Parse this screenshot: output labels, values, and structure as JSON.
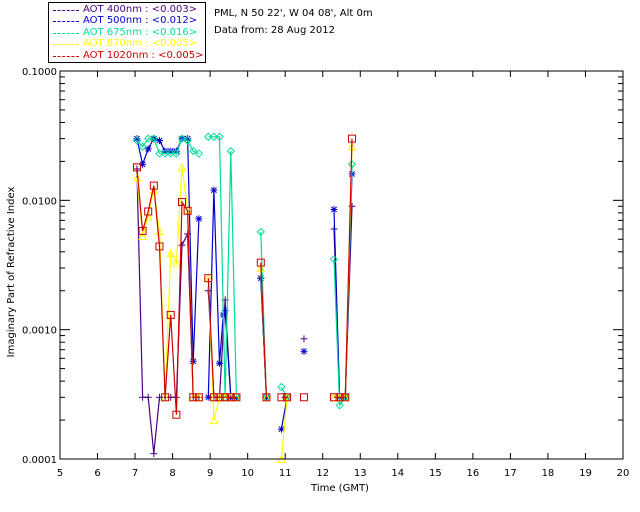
{
  "info": {
    "site_line": "PML, N 50 22', W 04 08', Alt 0m",
    "date_line": "Data from: 28 Aug 2012"
  },
  "legend": [
    {
      "label": "AOT  400nm : <0.003>",
      "color": "#4b0082"
    },
    {
      "label": "AOT  500nm : <0.012>",
      "color": "#0000cc"
    },
    {
      "label": "AOT  675nm : <0.016>",
      "color": "#00dd99"
    },
    {
      "label": "AOT  870nm : <0.005>",
      "color": "#ffff00"
    },
    {
      "label": "AOT 1020nm : <0.005>",
      "color": "#cc0000"
    }
  ],
  "chart_data": {
    "type": "line",
    "xlabel": "Time (GMT)",
    "ylabel": "Imaginary Part of Refractive Index",
    "xlim": [
      5,
      20
    ],
    "ylim": [
      0.0001,
      0.1
    ],
    "yscale": "log",
    "xticks": [
      5,
      6,
      7,
      8,
      9,
      10,
      11,
      12,
      13,
      14,
      15,
      16,
      17,
      18,
      19,
      20
    ],
    "yticks": [
      {
        "value": 0.0001,
        "label": "0.0001"
      },
      {
        "value": 0.001,
        "label": "0.0010"
      },
      {
        "value": 0.01,
        "label": "0.0100"
      },
      {
        "value": 0.1,
        "label": "0.1000"
      }
    ],
    "grid": false,
    "series": [
      {
        "name": "AOT  400nm",
        "color": "#4b0082",
        "marker": "plus",
        "segments": [
          [
            [
              7.05,
              0.0175
            ],
            [
              7.2,
              0.0003
            ],
            [
              7.35,
              0.0003
            ],
            [
              7.5,
              0.00011
            ],
            [
              7.65,
              0.0003
            ],
            [
              7.8,
              0.0003
            ],
            [
              7.95,
              0.0003
            ],
            [
              8.1,
              0.0003
            ],
            [
              8.25,
              0.0045
            ],
            [
              8.4,
              0.0055
            ],
            [
              8.55,
              0.0003
            ],
            [
              8.7,
              0.0003
            ]
          ],
          [
            [
              8.95,
              0.002
            ],
            [
              9.1,
              0.0003
            ],
            [
              9.25,
              0.0003
            ],
            [
              9.4,
              0.0017
            ],
            [
              9.55,
              0.0003
            ],
            [
              9.7,
              0.0003
            ]
          ],
          [
            [
              10.35,
              0.0025
            ],
            [
              10.5,
              0.0003
            ]
          ],
          [
            [
              11.5,
              0.00085
            ]
          ],
          [
            [
              12.3,
              0.006
            ],
            [
              12.45,
              0.0003
            ],
            [
              12.6,
              0.0003
            ],
            [
              12.78,
              0.009
            ]
          ]
        ]
      },
      {
        "name": "AOT  500nm",
        "color": "#0000cc",
        "marker": "asterisk",
        "segments": [
          [
            [
              7.05,
              0.03
            ],
            [
              7.2,
              0.019
            ],
            [
              7.35,
              0.025
            ],
            [
              7.5,
              0.03
            ],
            [
              7.65,
              0.029
            ],
            [
              7.8,
              0.024
            ],
            [
              7.95,
              0.024
            ],
            [
              8.1,
              0.024
            ],
            [
              8.25,
              0.03
            ],
            [
              8.4,
              0.03
            ],
            [
              8.55,
              0.00057
            ],
            [
              8.7,
              0.0072
            ]
          ],
          [
            [
              8.95,
              0.0003
            ],
            [
              9.1,
              0.012
            ],
            [
              9.25,
              0.00055
            ],
            [
              9.35,
              0.0013
            ],
            [
              9.4,
              0.0014
            ],
            [
              9.55,
              0.0003
            ],
            [
              9.7,
              0.0003
            ]
          ],
          [
            [
              10.35,
              0.0025
            ],
            [
              10.5,
              0.0003
            ]
          ],
          [
            [
              10.9,
              0.00017
            ],
            [
              11.05,
              0.0003
            ]
          ],
          [
            [
              11.5,
              0.00068
            ]
          ],
          [
            [
              12.3,
              0.0085
            ],
            [
              12.45,
              0.0003
            ],
            [
              12.6,
              0.0003
            ],
            [
              12.78,
              0.016
            ]
          ]
        ]
      },
      {
        "name": "AOT  675nm",
        "color": "#00dd99",
        "marker": "diamond",
        "segments": [
          [
            [
              7.05,
              0.029
            ],
            [
              7.2,
              0.026
            ],
            [
              7.35,
              0.03
            ],
            [
              7.5,
              0.03
            ],
            [
              7.65,
              0.023
            ],
            [
              7.8,
              0.023
            ],
            [
              7.95,
              0.023
            ],
            [
              8.1,
              0.023
            ],
            [
              8.25,
              0.03
            ],
            [
              8.4,
              0.029
            ],
            [
              8.55,
              0.024
            ],
            [
              8.7,
              0.023
            ]
          ],
          [
            [
              8.95,
              0.031
            ],
            [
              9.1,
              0.031
            ],
            [
              9.25,
              0.031
            ],
            [
              9.4,
              0.0003
            ],
            [
              9.55,
              0.024
            ],
            [
              9.7,
              0.0003
            ]
          ],
          [
            [
              10.35,
              0.0057
            ],
            [
              10.5,
              0.0003
            ]
          ],
          [
            [
              10.9,
              0.00036
            ],
            [
              11.05,
              0.0003
            ]
          ],
          [
            [
              12.3,
              0.0035
            ],
            [
              12.45,
              0.00026
            ],
            [
              12.6,
              0.0003
            ],
            [
              12.78,
              0.019
            ]
          ]
        ]
      },
      {
        "name": "AOT  870nm",
        "color": "#ffff00",
        "marker": "triangle",
        "segments": [
          [
            [
              7.05,
              0.015
            ],
            [
              7.2,
              0.0053
            ],
            [
              7.35,
              0.0075
            ],
            [
              7.5,
              0.012
            ],
            [
              7.65,
              0.0058
            ],
            [
              7.8,
              0.0003
            ],
            [
              7.95,
              0.0039
            ],
            [
              8.1,
              0.0033
            ],
            [
              8.25,
              0.018
            ],
            [
              8.4,
              0.0085
            ],
            [
              8.55,
              0.0003
            ],
            [
              8.7,
              0.0003
            ]
          ],
          [
            [
              8.95,
              0.0025
            ],
            [
              9.1,
              0.0002
            ],
            [
              9.25,
              0.0003
            ],
            [
              9.4,
              0.0003
            ],
            [
              9.55,
              0.0003
            ],
            [
              9.7,
              0.0003
            ]
          ],
          [
            [
              10.35,
              0.003
            ],
            [
              10.5,
              0.0003
            ]
          ],
          [
            [
              10.9,
              0.0001
            ],
            [
              11.05,
              0.0003
            ]
          ],
          [
            [
              12.3,
              0.0003
            ],
            [
              12.45,
              0.0003
            ],
            [
              12.6,
              0.0003
            ],
            [
              12.78,
              0.026
            ]
          ]
        ]
      },
      {
        "name": "AOT 1020nm",
        "color": "#cc0000",
        "marker": "square",
        "segments": [
          [
            [
              7.05,
              0.018
            ],
            [
              7.2,
              0.0058
            ],
            [
              7.35,
              0.0082
            ],
            [
              7.5,
              0.013
            ],
            [
              7.65,
              0.0044
            ],
            [
              7.8,
              0.0003
            ],
            [
              7.95,
              0.0013
            ],
            [
              8.1,
              0.00022
            ],
            [
              8.25,
              0.0097
            ],
            [
              8.4,
              0.0083
            ],
            [
              8.55,
              0.0003
            ],
            [
              8.7,
              0.0003
            ]
          ],
          [
            [
              8.95,
              0.0025
            ],
            [
              9.1,
              0.0003
            ],
            [
              9.25,
              0.0003
            ],
            [
              9.4,
              0.0003
            ],
            [
              9.55,
              0.0003
            ],
            [
              9.7,
              0.0003
            ]
          ],
          [
            [
              10.35,
              0.0033
            ],
            [
              10.5,
              0.0003
            ]
          ],
          [
            [
              10.9,
              0.0003
            ],
            [
              11.05,
              0.0003
            ]
          ],
          [
            [
              11.5,
              0.0003
            ]
          ],
          [
            [
              12.3,
              0.0003
            ],
            [
              12.45,
              0.0003
            ],
            [
              12.6,
              0.0003
            ],
            [
              12.78,
              0.03
            ]
          ]
        ]
      }
    ]
  }
}
